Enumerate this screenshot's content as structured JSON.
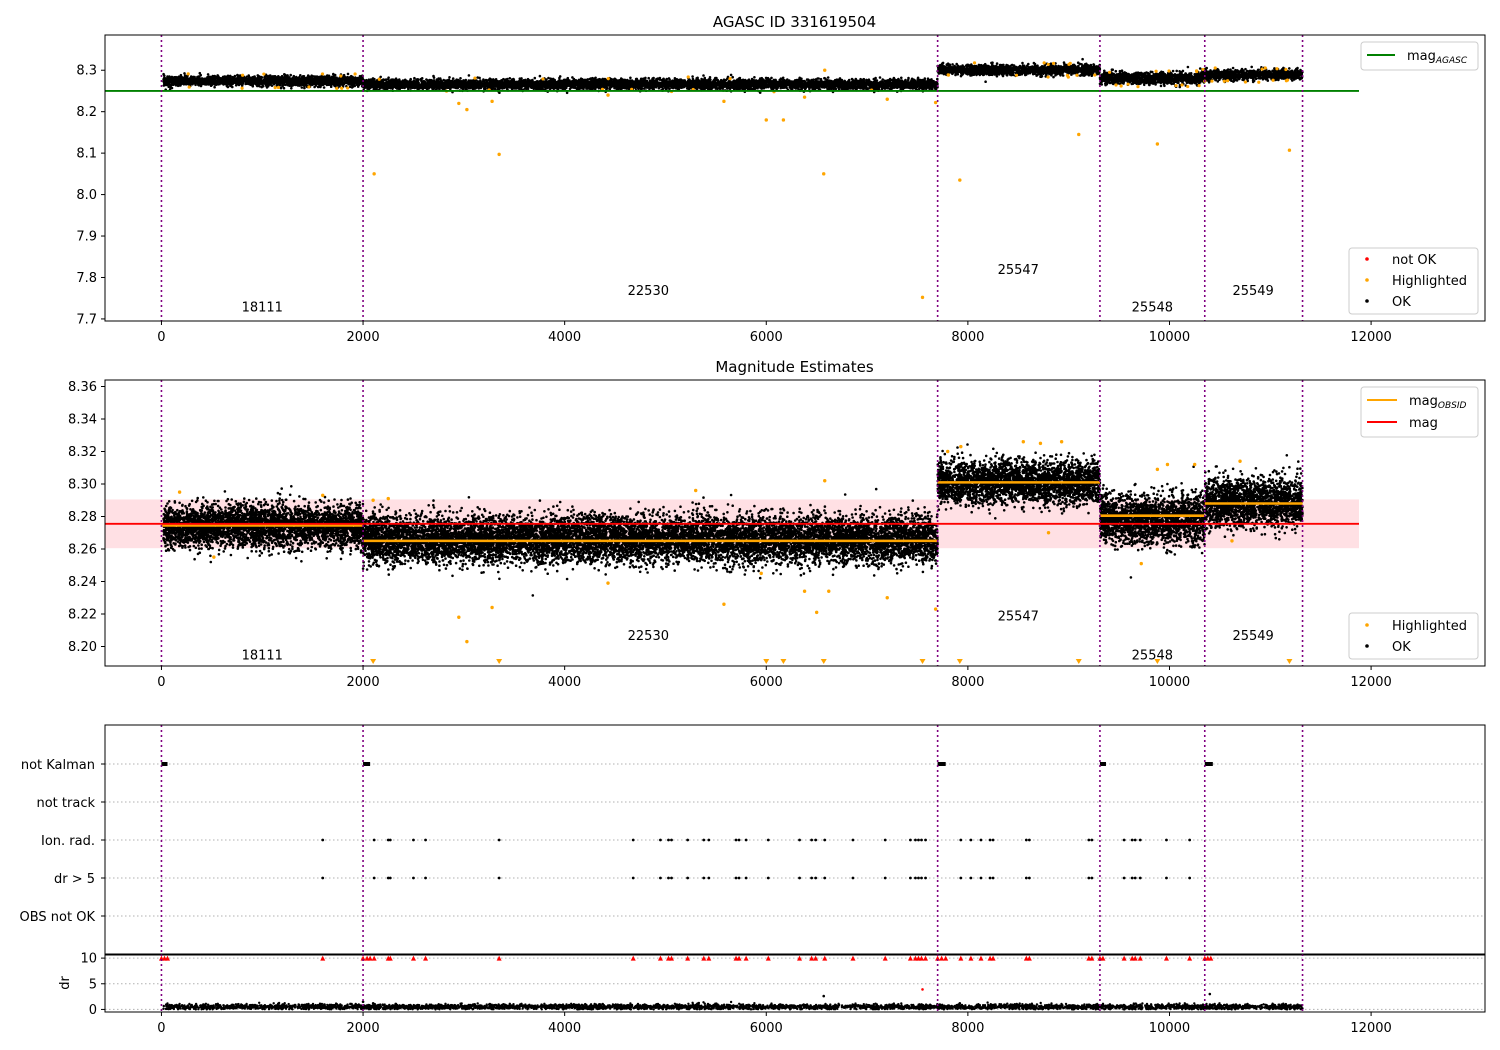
{
  "figure": {
    "title": "AGASC ID 331619504"
  },
  "colors": {
    "ok": "#000000",
    "highlighted": "#ffa500",
    "not_ok": "#ff0000",
    "agasc_line": "#008000",
    "mean_line": "#ff0000",
    "band_fill": "#ffe0e4",
    "obsid_line": "#ffa500",
    "boundary": "#800080",
    "grid": "#b0b0b0"
  },
  "chart_data": [
    {
      "type": "scatter",
      "title": "",
      "xlim": [
        -560,
        13130
      ],
      "ylim": [
        7.695,
        8.385
      ],
      "x_ticks": [
        0,
        2000,
        4000,
        6000,
        8000,
        10000,
        12000
      ],
      "x_tick_labels": [
        "0",
        "2000",
        "4000",
        "6000",
        "8000",
        "10000",
        "12000"
      ],
      "y_ticks": [
        7.7,
        7.8,
        7.9,
        8.0,
        8.1,
        8.2,
        8.3
      ],
      "y_tick_labels": [
        "7.7",
        "7.8",
        "7.9",
        "8.0",
        "8.1",
        "8.2",
        "8.3"
      ],
      "grid": false,
      "legend_placement_top": "top-right",
      "legend_placement_bottom": "bottom-right",
      "legend_top": [
        {
          "label": "mag",
          "subscript": "AGASC",
          "kind": "line",
          "color": "#008000"
        }
      ],
      "legend_bottom": [
        {
          "label": "not OK",
          "kind": "marker",
          "color": "#ff0000"
        },
        {
          "label": "Highlighted",
          "kind": "marker",
          "color": "#ffa500"
        },
        {
          "label": "OK",
          "kind": "marker",
          "color": "#000000"
        }
      ],
      "reference_line": {
        "name": "mag_AGASC",
        "y": 8.25,
        "x_range": [
          -560,
          11880
        ]
      },
      "obsid_boundaries": [
        0,
        2000,
        7700,
        9310,
        10350,
        11320
      ],
      "obsid_labels": [
        {
          "label": "18111",
          "x": 1000,
          "y": 7.73
        },
        {
          "label": "22530",
          "x": 4830,
          "y": 7.77
        },
        {
          "label": "25547",
          "x": 8500,
          "y": 7.82
        },
        {
          "label": "25548",
          "x": 9830,
          "y": 7.73
        },
        {
          "label": "25549",
          "x": 10830,
          "y": 7.77
        }
      ],
      "segments_ok": [
        {
          "x_range": [
            20,
            2000
          ],
          "center": 8.274,
          "spread": 0.006
        },
        {
          "x_range": [
            2000,
            7700
          ],
          "center": 8.266,
          "spread": 0.006
        },
        {
          "x_range": [
            7700,
            9310
          ],
          "center": 8.301,
          "spread": 0.006
        },
        {
          "x_range": [
            9310,
            10350
          ],
          "center": 8.281,
          "spread": 0.007
        },
        {
          "x_range": [
            10350,
            11320
          ],
          "center": 8.289,
          "spread": 0.006
        }
      ],
      "highlighted_points": [
        {
          "x": 2110,
          "y": 8.05
        },
        {
          "x": 2950,
          "y": 8.22
        },
        {
          "x": 3030,
          "y": 8.205
        },
        {
          "x": 3280,
          "y": 8.225
        },
        {
          "x": 3350,
          "y": 8.097
        },
        {
          "x": 5580,
          "y": 8.225
        },
        {
          "x": 6000,
          "y": 8.18
        },
        {
          "x": 6170,
          "y": 8.18
        },
        {
          "x": 6570,
          "y": 8.05
        },
        {
          "x": 6580,
          "y": 8.3
        },
        {
          "x": 7550,
          "y": 7.752
        },
        {
          "x": 7680,
          "y": 8.222
        },
        {
          "x": 7920,
          "y": 8.035
        },
        {
          "x": 9100,
          "y": 8.145
        },
        {
          "x": 9880,
          "y": 8.122
        },
        {
          "x": 11190,
          "y": 8.107
        },
        {
          "x": 6380,
          "y": 8.235
        },
        {
          "x": 7200,
          "y": 8.23
        },
        {
          "x": 4430,
          "y": 8.24
        }
      ]
    },
    {
      "type": "scatter",
      "title": "Magnitude Estimates",
      "xlim": [
        -560,
        13130
      ],
      "ylim": [
        8.188,
        8.364
      ],
      "x_ticks": [
        0,
        2000,
        4000,
        6000,
        8000,
        10000,
        12000
      ],
      "x_tick_labels": [
        "0",
        "2000",
        "4000",
        "6000",
        "8000",
        "10000",
        "12000"
      ],
      "y_ticks": [
        8.2,
        8.22,
        8.24,
        8.26,
        8.28,
        8.3,
        8.32,
        8.34,
        8.36
      ],
      "y_tick_labels": [
        "8.20",
        "8.22",
        "8.24",
        "8.26",
        "8.28",
        "8.30",
        "8.32",
        "8.34",
        "8.36"
      ],
      "grid": false,
      "legend_placement_top": "top-right",
      "legend_placement_bottom": "bottom-right",
      "legend_top": [
        {
          "label": "mag",
          "subscript": "OBSID",
          "kind": "line",
          "color": "#ffa500"
        },
        {
          "label": "mag",
          "subscript": "",
          "kind": "line",
          "color": "#ff0000"
        }
      ],
      "legend_bottom": [
        {
          "label": "Highlighted",
          "kind": "marker",
          "color": "#ffa500"
        },
        {
          "label": "OK",
          "kind": "marker",
          "color": "#000000"
        }
      ],
      "mean_line": {
        "name": "mag",
        "y": 8.2755,
        "x_range": [
          -560,
          11880
        ]
      },
      "band": {
        "y_range": [
          8.2605,
          8.2905
        ],
        "x_range": [
          -560,
          11880
        ]
      },
      "obsid_lines": [
        {
          "x_range": [
            0,
            2000
          ],
          "y": 8.2745
        },
        {
          "x_range": [
            2000,
            7700
          ],
          "y": 8.265
        },
        {
          "x_range": [
            7700,
            9310
          ],
          "y": 8.301
        },
        {
          "x_range": [
            9310,
            10350
          ],
          "y": 8.2805
        },
        {
          "x_range": [
            10350,
            11320
          ],
          "y": 8.288
        }
      ],
      "obsid_boundaries": [
        0,
        2000,
        7700,
        9310,
        10350,
        11320
      ],
      "obsid_labels": [
        {
          "label": "18111",
          "x": 1000,
          "y": 8.195
        },
        {
          "label": "22530",
          "x": 4830,
          "y": 8.207
        },
        {
          "label": "25547",
          "x": 8500,
          "y": 8.219
        },
        {
          "label": "25548",
          "x": 9830,
          "y": 8.195
        },
        {
          "label": "25549",
          "x": 10830,
          "y": 8.207
        }
      ],
      "segments_ok": [
        {
          "x_range": [
            20,
            2000
          ],
          "center": 8.274,
          "spread": 0.0065
        },
        {
          "x_range": [
            2000,
            7700
          ],
          "center": 8.266,
          "spread": 0.0072
        },
        {
          "x_range": [
            7700,
            9310
          ],
          "center": 8.301,
          "spread": 0.0065
        },
        {
          "x_range": [
            9310,
            10350
          ],
          "center": 8.2785,
          "spread": 0.0075
        },
        {
          "x_range": [
            10350,
            11320
          ],
          "center": 8.289,
          "spread": 0.0075
        }
      ],
      "highlighted_points": [
        {
          "x": 180,
          "y": 8.295
        },
        {
          "x": 520,
          "y": 8.255
        },
        {
          "x": 1600,
          "y": 8.293
        },
        {
          "x": 2100,
          "y": 8.29
        },
        {
          "x": 2250,
          "y": 8.291
        },
        {
          "x": 2950,
          "y": 8.218
        },
        {
          "x": 3030,
          "y": 8.203
        },
        {
          "x": 3280,
          "y": 8.224
        },
        {
          "x": 4430,
          "y": 8.239
        },
        {
          "x": 5300,
          "y": 8.296
        },
        {
          "x": 5580,
          "y": 8.226
        },
        {
          "x": 5950,
          "y": 8.245
        },
        {
          "x": 6380,
          "y": 8.234
        },
        {
          "x": 6500,
          "y": 8.221
        },
        {
          "x": 6580,
          "y": 8.302
        },
        {
          "x": 6620,
          "y": 8.234
        },
        {
          "x": 7200,
          "y": 8.23
        },
        {
          "x": 7680,
          "y": 8.223
        },
        {
          "x": 7800,
          "y": 8.32
        },
        {
          "x": 7930,
          "y": 8.323
        },
        {
          "x": 8550,
          "y": 8.326
        },
        {
          "x": 8720,
          "y": 8.325
        },
        {
          "x": 8800,
          "y": 8.27
        },
        {
          "x": 8930,
          "y": 8.326
        },
        {
          "x": 9880,
          "y": 8.309
        },
        {
          "x": 9980,
          "y": 8.312
        },
        {
          "x": 10250,
          "y": 8.312
        },
        {
          "x": 10700,
          "y": 8.314
        },
        {
          "x": 10620,
          "y": 8.265
        },
        {
          "x": 9720,
          "y": 8.251
        }
      ],
      "off_scale_markers_x": [
        2100,
        3350,
        6000,
        6170,
        6570,
        7550,
        7920,
        9100,
        9880,
        11190
      ]
    },
    {
      "type": "scatter",
      "title": "",
      "xlim": [
        -560,
        13130
      ],
      "x_ticks": [
        0,
        2000,
        4000,
        6000,
        8000,
        10000,
        12000
      ],
      "x_tick_labels": [
        "0",
        "2000",
        "4000",
        "6000",
        "8000",
        "10000",
        "12000"
      ],
      "flag_rows": [
        "not Kalman",
        "not track",
        "Ion. rad.",
        "dr > 5",
        "OBS not OK"
      ],
      "grid": true,
      "not_kalman_x_ranges": [
        [
          0,
          60
        ],
        [
          2000,
          70
        ],
        [
          7700,
          80
        ],
        [
          9310,
          60
        ],
        [
          10350,
          80
        ]
      ],
      "flag_events_x": [
        1600,
        2110,
        2250,
        2270,
        2500,
        2620,
        3350,
        4680,
        4950,
        5030,
        5060,
        5220,
        5380,
        5430,
        5700,
        5730,
        5800,
        6020,
        6330,
        6450,
        6490,
        6580,
        6860,
        7180,
        7430,
        7480,
        7510,
        7540,
        7580,
        7930,
        8030,
        8130,
        8220,
        8250,
        8580,
        8610,
        9200,
        9230,
        9550,
        9630,
        9660,
        9710,
        9970,
        10200
      ],
      "ylabel": "dr",
      "dr_ylim": [
        -0.5,
        10.8
      ],
      "dr_y_ticks": [
        0,
        5,
        10
      ],
      "dr_y_tick_labels": [
        "0",
        "5",
        "10"
      ],
      "dr_clip_value": 10,
      "dr_typical": 0.5,
      "dr_extra_points": [
        {
          "x": 2000,
          "y": 1.5
        },
        {
          "x": 2100,
          "y": 1.2
        },
        {
          "x": 6570,
          "y": 2.6
        },
        {
          "x": 7550,
          "y": 3.9
        },
        {
          "x": 7920,
          "y": 1.2
        },
        {
          "x": 10400,
          "y": 3.0
        }
      ]
    }
  ]
}
